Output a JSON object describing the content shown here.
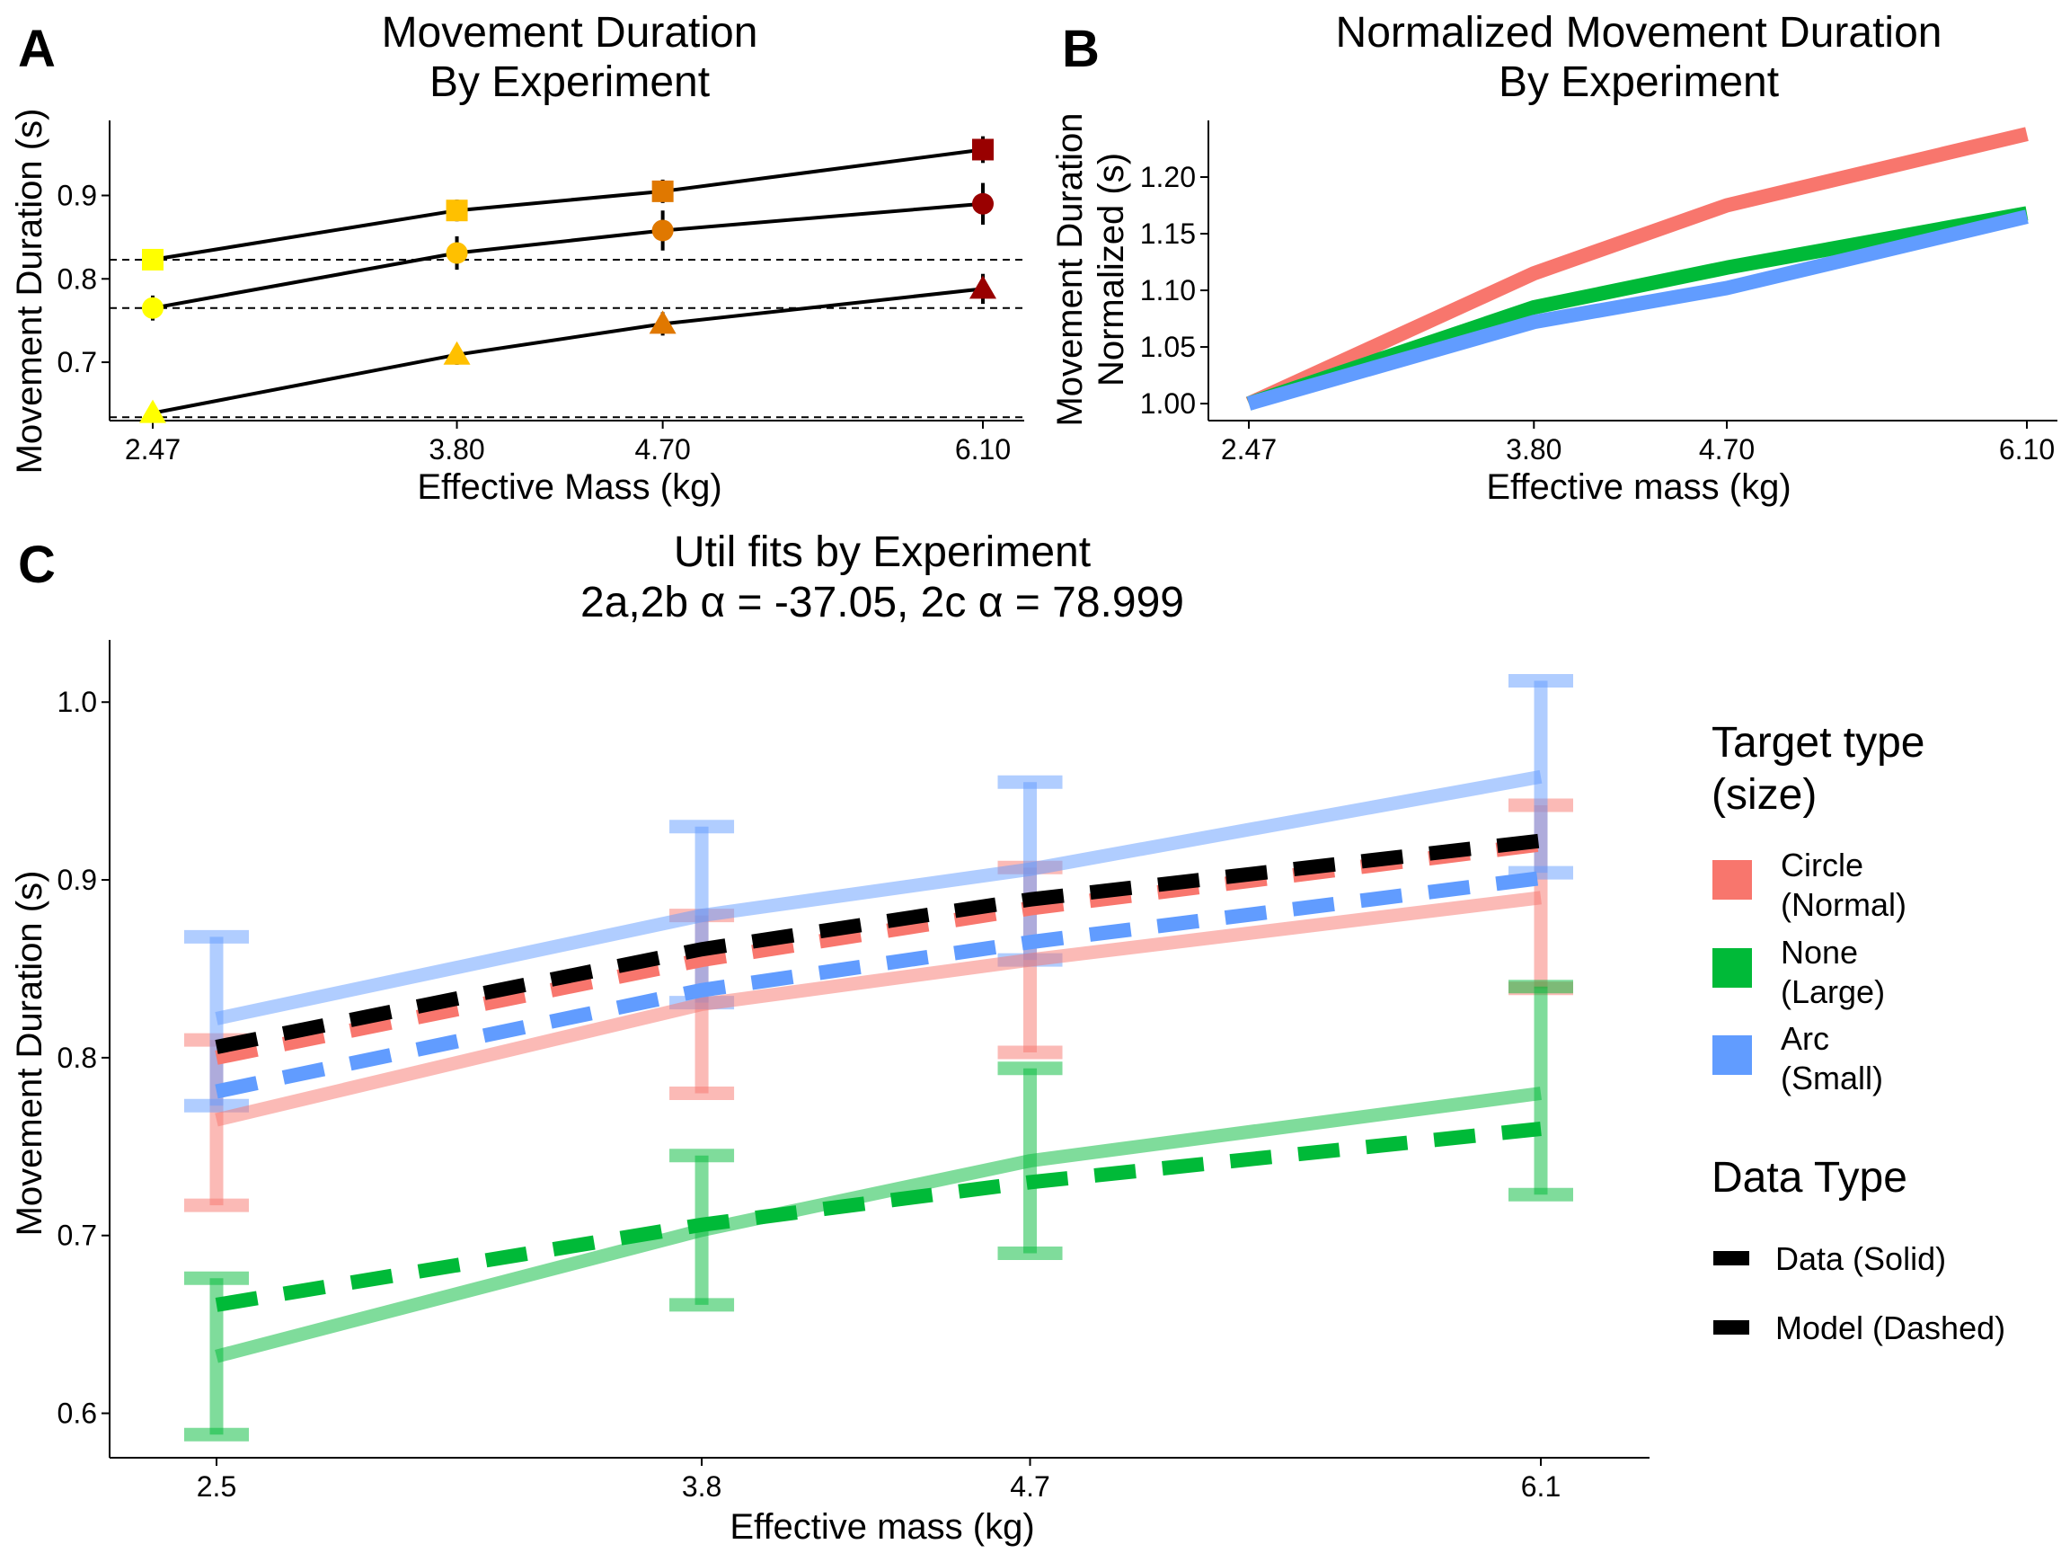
{
  "panels": {
    "A": {
      "label": "A",
      "title_line1": "Movement Duration",
      "title_line2": "By Experiment",
      "xlabel": "Effective Mass (kg)",
      "ylabel": "Movement Duration (s)",
      "xticks": [
        "2.47",
        "3.80",
        "4.70",
        "6.10"
      ],
      "yticks": [
        "0.7",
        "0.8",
        "0.9"
      ]
    },
    "B": {
      "label": "B",
      "title_line1": "Normalized Movement Duration",
      "title_line2": "By Experiment",
      "xlabel": "Effective mass (kg)",
      "ylabel_line1": "Movement Duration",
      "ylabel_line2": "Normalized (s)",
      "xticks": [
        "2.47",
        "3.80",
        "4.70",
        "6.10"
      ],
      "yticks": [
        "1.00",
        "1.05",
        "1.10",
        "1.15",
        "1.20"
      ]
    },
    "C": {
      "label": "C",
      "title_line1": "Util fits by Experiment",
      "title_line2": "2a,2b α = -37.05, 2c α = 78.999",
      "xlabel": "Effective mass (kg)",
      "ylabel": "Movement Duration (s)",
      "xticks": [
        "2.5",
        "3.8",
        "4.7",
        "6.1"
      ],
      "yticks": [
        "0.6",
        "0.7",
        "0.8",
        "0.9",
        "1.0"
      ]
    }
  },
  "legend": {
    "target_title_line1": "Target type",
    "target_title_line2": "(size)",
    "items": [
      {
        "line1": "Circle",
        "line2": "(Normal)",
        "color": "#F8766D"
      },
      {
        "line1": "None",
        "line2": "(Large)",
        "color": "#00BA38"
      },
      {
        "line1": "Arc",
        "line2": "(Small)",
        "color": "#619CFF"
      }
    ],
    "datatype_title": "Data Type",
    "datatype_items": [
      "Data (Solid)",
      "Model (Dashed)"
    ]
  },
  "chart_data": [
    {
      "panel": "A",
      "type": "line",
      "x": [
        2.47,
        3.8,
        4.7,
        6.1
      ],
      "xlim": [
        2.47,
        6.1
      ],
      "ylim": [
        0.63,
        0.99
      ],
      "point_colors": [
        "#FFFF00",
        "#FFC000",
        "#E07800",
        "#990000"
      ],
      "series": [
        {
          "shape": "square",
          "values": [
            0.823,
            0.882,
            0.905,
            0.955
          ],
          "err": [
            0.012,
            0.013,
            0.014,
            0.016
          ]
        },
        {
          "shape": "circle",
          "values": [
            0.765,
            0.831,
            0.858,
            0.89
          ],
          "err": [
            0.015,
            0.02,
            0.024,
            0.025
          ]
        },
        {
          "shape": "triangle",
          "values": [
            0.639,
            0.709,
            0.746,
            0.788
          ],
          "err": [
            0.01,
            0.012,
            0.014,
            0.018
          ]
        }
      ],
      "reference_lines": [
        0.823,
        0.765,
        0.634
      ]
    },
    {
      "panel": "B",
      "type": "line",
      "x": [
        2.47,
        3.8,
        4.7,
        6.1
      ],
      "xlim": [
        2.47,
        6.1
      ],
      "ylim": [
        0.985,
        1.25
      ],
      "series": [
        {
          "color": "#F8766D",
          "values": [
            1.0,
            1.115,
            1.175,
            1.238
          ]
        },
        {
          "color": "#00BA38",
          "values": [
            1.0,
            1.085,
            1.12,
            1.168
          ]
        },
        {
          "color": "#619CFF",
          "values": [
            1.0,
            1.072,
            1.102,
            1.165
          ]
        }
      ]
    },
    {
      "panel": "C",
      "type": "line",
      "x": [
        2.47,
        3.8,
        4.7,
        6.1
      ],
      "xlim": [
        2.47,
        6.1
      ],
      "ylim": [
        0.575,
        1.035
      ],
      "series": [
        {
          "color": "#F8766D",
          "data": [
            0.765,
            0.83,
            0.855,
            0.89
          ],
          "err_low": [
            0.717,
            0.78,
            0.803,
            0.839
          ],
          "err_high": [
            0.81,
            0.88,
            0.907,
            0.942
          ],
          "model": [
            0.8,
            0.855,
            0.884,
            0.92
          ]
        },
        {
          "color": "#00BA38",
          "data": [
            0.632,
            0.703,
            0.742,
            0.78
          ],
          "err_low": [
            0.588,
            0.661,
            0.69,
            0.723
          ],
          "err_high": [
            0.676,
            0.745,
            0.794,
            0.84
          ],
          "model": [
            0.661,
            0.706,
            0.73,
            0.76
          ]
        },
        {
          "color": "#619CFF",
          "data": [
            0.822,
            0.88,
            0.906,
            0.958
          ],
          "err_low": [
            0.773,
            0.831,
            0.855,
            0.904
          ],
          "err_high": [
            0.868,
            0.93,
            0.955,
            1.012
          ],
          "model": [
            0.781,
            0.838,
            0.865,
            0.901
          ]
        },
        {
          "color": "#000000",
          "model": [
            0.806,
            0.861,
            0.889,
            0.922
          ]
        }
      ]
    }
  ]
}
